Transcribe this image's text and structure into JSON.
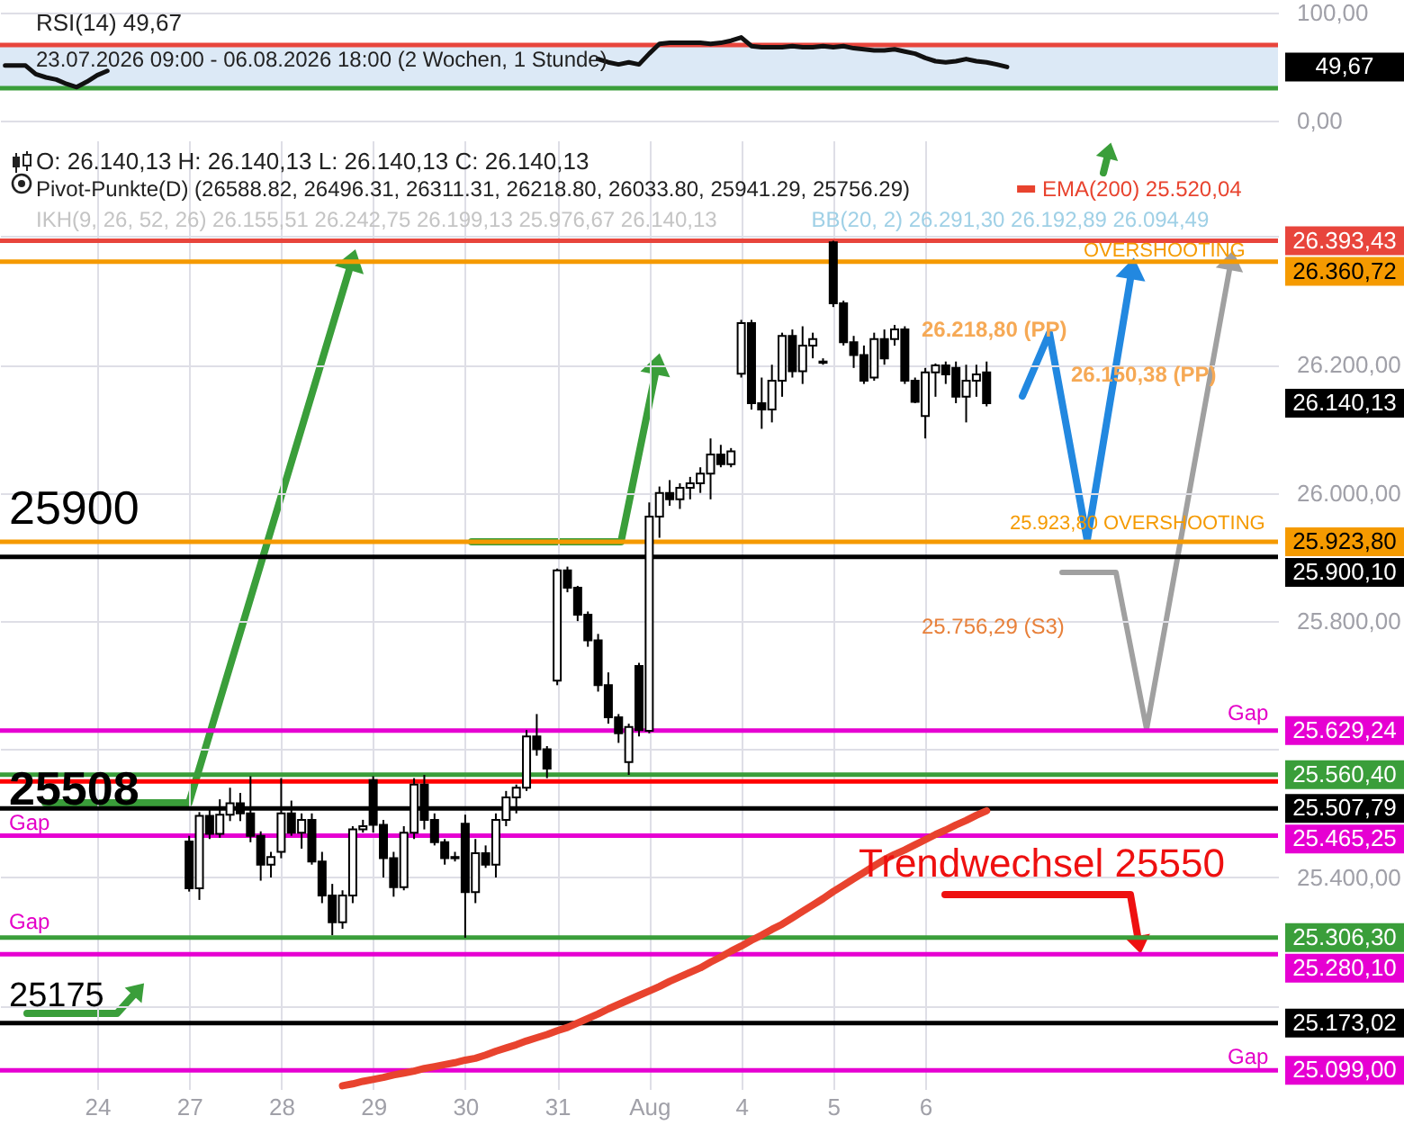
{
  "chart_data": [
    {
      "type": "line",
      "title": "RSI(14) 49,67",
      "subtitle": "23.07.2026 09:00 - 06.08.2026 18:00  (2 Wochen, 1 Stunde)",
      "color": "#111111",
      "categories": [
        null,
        null,
        null,
        null,
        null,
        null,
        null,
        null,
        null,
        null,
        null,
        null,
        null,
        null,
        null,
        null,
        null,
        null,
        null,
        null,
        null,
        null,
        null,
        null,
        null,
        null,
        null,
        null,
        null,
        null,
        null,
        null,
        null,
        null,
        null,
        null,
        null,
        null,
        null,
        null,
        null,
        null,
        null,
        null,
        null,
        null,
        null,
        null,
        null,
        null,
        null,
        null,
        null,
        null,
        null,
        null,
        null,
        null,
        null,
        null,
        null,
        null,
        null,
        null,
        null,
        null,
        null,
        null,
        null,
        null,
        null,
        null,
        null,
        null,
        null,
        null,
        null,
        null,
        null,
        null,
        null,
        null,
        null,
        null,
        null,
        null,
        null,
        null,
        null,
        null,
        null,
        null,
        null,
        null,
        null,
        null,
        null,
        null,
        null,
        null,
        null,
        null,
        null,
        null,
        null,
        null,
        null,
        null,
        null,
        null,
        null,
        null,
        null,
        null,
        null,
        null,
        null,
        null,
        null,
        null,
        null,
        null,
        null,
        null,
        null
      ],
      "values": [
        51,
        51,
        51,
        43,
        40,
        38,
        34,
        31,
        36,
        42,
        46,
        null,
        null,
        null,
        null,
        null,
        null,
        null,
        null,
        null,
        null,
        null,
        null,
        null,
        null,
        null,
        null,
        null,
        null,
        null,
        null,
        null,
        null,
        null,
        null,
        null,
        null,
        null,
        null,
        null,
        null,
        null,
        null,
        null,
        null,
        null,
        null,
        null,
        null,
        null,
        null,
        null,
        null,
        null,
        null,
        null,
        null,
        null,
        57,
        54,
        52,
        54,
        52,
        62,
        71,
        72,
        72,
        72,
        72,
        71,
        72,
        74,
        77,
        69,
        68,
        68,
        68,
        69,
        68,
        68,
        69,
        68,
        69,
        67,
        66,
        65,
        65,
        66,
        64,
        62,
        58,
        55,
        54,
        55,
        57,
        55,
        54,
        52,
        49.67,
        null,
        null,
        null,
        null,
        null,
        null,
        null,
        null,
        null,
        null,
        null,
        null,
        null,
        null,
        null,
        null,
        null,
        null,
        null,
        null,
        null,
        null,
        null,
        null,
        null,
        null
      ],
      "ylim": [
        0,
        100
      ],
      "yticks": [
        {
          "value": 0,
          "label": "0,00"
        },
        {
          "value": 100,
          "label": "100,00"
        }
      ],
      "tick_labels": "y",
      "grid": "y",
      "bands": [
        {
          "axis": "y",
          "from": 30,
          "to": 70,
          "color": "#dce9f6"
        }
      ],
      "ref_lines": [
        {
          "axis": "y",
          "value": 70,
          "color": "#e8453c"
        },
        {
          "axis": "y",
          "value": 30,
          "color": "#3a9e3a"
        }
      ],
      "annotations": [
        "49,67"
      ]
    },
    {
      "type": "candlestick",
      "title": "O: 26.140,13  H: 26.140,13  L: 26.140,13  C: 26.140,13",
      "subtitle": "Pivot-Punkte(D)  (26588.82, 26496.31, 26311.31, 26218.80, 26033.80, 25941.29, 25756.29)",
      "color": "#000000",
      "categories": [
        null,
        null,
        null,
        null,
        null,
        null,
        null,
        null,
        null,
        "24",
        null,
        null,
        null,
        null,
        null,
        null,
        null,
        null,
        "27",
        null,
        null,
        null,
        null,
        null,
        null,
        null,
        null,
        "28",
        null,
        null,
        null,
        null,
        null,
        null,
        null,
        null,
        "29",
        null,
        null,
        null,
        null,
        null,
        null,
        null,
        null,
        "30",
        null,
        null,
        null,
        null,
        null,
        null,
        null,
        null,
        "31",
        null,
        null,
        null,
        null,
        null,
        null,
        null,
        null,
        "Aug",
        null,
        null,
        null,
        null,
        null,
        null,
        null,
        null,
        "4",
        null,
        null,
        null,
        null,
        null,
        null,
        null,
        null,
        "5",
        null,
        null,
        null,
        null,
        null,
        null,
        null,
        null,
        "6",
        null,
        null,
        null,
        null,
        null,
        null,
        null,
        null,
        null,
        null,
        null,
        null,
        null,
        null,
        null,
        null,
        null,
        null,
        null,
        null,
        null,
        null,
        null,
        null,
        null,
        null,
        null,
        null,
        null,
        null,
        null,
        null,
        null,
        null
      ],
      "ohlc": [
        null,
        null,
        null,
        null,
        null,
        null,
        null,
        null,
        null,
        null,
        null,
        null,
        null,
        null,
        null,
        null,
        null,
        null,
        [
          25456,
          25465,
          25378,
          25383
        ],
        [
          25383,
          25502,
          25365,
          25496
        ],
        [
          25496,
          25510,
          25460,
          25468
        ],
        [
          25468,
          25522,
          25462,
          25498
        ],
        [
          25498,
          25540,
          25488,
          25516
        ],
        [
          25516,
          25532,
          25488,
          25500
        ],
        [
          25500,
          25558,
          25455,
          25465
        ],
        [
          25465,
          25472,
          25395,
          25420
        ],
        [
          25420,
          25440,
          25400,
          25432
        ],
        [
          25440,
          25555,
          25430,
          25500
        ],
        [
          25500,
          25520,
          25465,
          25470
        ],
        [
          25470,
          25500,
          25445,
          25490
        ],
        [
          25490,
          25500,
          25420,
          25425
        ],
        [
          25425,
          25440,
          25360,
          25372
        ],
        [
          25372,
          25390,
          25310,
          25330
        ],
        [
          25330,
          25380,
          25320,
          25372
        ],
        [
          25372,
          25480,
          25360,
          25475
        ],
        [
          25475,
          25490,
          25470,
          25480
        ],
        [
          25552,
          25558,
          25470,
          25482
        ],
        [
          25482,
          25490,
          25400,
          25430
        ],
        [
          25430,
          25440,
          25370,
          25385
        ],
        [
          25385,
          25480,
          25380,
          25470
        ],
        [
          25470,
          25555,
          25460,
          25545
        ],
        [
          25545,
          25560,
          25475,
          25490
        ],
        [
          25490,
          25500,
          25450,
          25455
        ],
        [
          25455,
          25460,
          25420,
          25430
        ],
        [
          25430,
          25440,
          25425,
          25432
        ],
        [
          25484,
          25498,
          25306,
          25377
        ],
        [
          25377,
          25460,
          25360,
          25438
        ],
        [
          25438,
          25450,
          25415,
          25420
        ],
        [
          25420,
          25500,
          25400,
          25490
        ],
        [
          25490,
          25535,
          25480,
          25525
        ],
        [
          25525,
          25545,
          25500,
          25540
        ],
        [
          25540,
          25630,
          25535,
          25620
        ],
        [
          25620,
          25655,
          25590,
          25600
        ],
        [
          25600,
          25605,
          25555,
          25570
        ],
        [
          25707,
          25882,
          25700,
          25879
        ],
        [
          25879,
          25885,
          25845,
          25852
        ],
        [
          25852,
          25855,
          25800,
          25810
        ],
        [
          25810,
          25815,
          25760,
          25770
        ],
        [
          25770,
          25780,
          25690,
          25700
        ],
        [
          25700,
          25720,
          25640,
          25650
        ],
        [
          25650,
          25655,
          25610,
          25625
        ],
        [
          25580,
          25640,
          25560,
          25635
        ],
        [
          25730,
          25735,
          25620,
          25630
        ],
        [
          25629,
          25985,
          25625,
          25963
        ],
        [
          25963,
          26010,
          25930,
          26000
        ],
        [
          26000,
          26020,
          25980,
          25990
        ],
        [
          25990,
          26015,
          25975,
          26008
        ],
        [
          26008,
          26025,
          25990,
          26015
        ],
        [
          26015,
          26040,
          26000,
          26030
        ],
        [
          26030,
          26085,
          25990,
          26060
        ],
        [
          26060,
          26075,
          26040,
          26045
        ],
        [
          26045,
          26070,
          26040,
          26065
        ],
        [
          26186,
          26270,
          26180,
          26265
        ],
        [
          26265,
          26270,
          26130,
          26140
        ],
        [
          26140,
          26180,
          26100,
          26130
        ],
        [
          26130,
          26200,
          26110,
          26175
        ],
        [
          26175,
          26250,
          26150,
          26245
        ],
        [
          26245,
          26255,
          26180,
          26190
        ],
        [
          26190,
          26260,
          26170,
          26230
        ],
        [
          26230,
          26250,
          26210,
          26240
        ],
        [
          26205,
          26210,
          26200,
          26203
        ],
        [
          26391,
          26393.43,
          26290,
          26296
        ],
        [
          26296,
          26300,
          26230,
          26235
        ],
        [
          26235,
          26245,
          26195,
          26215
        ],
        [
          26215,
          26230,
          26170,
          26175
        ],
        [
          26180,
          26250,
          26175,
          26240
        ],
        [
          26240,
          26255,
          26200,
          26210
        ],
        [
          26240,
          26262,
          26230,
          26255
        ],
        [
          26255,
          26260,
          26170,
          26175
        ],
        [
          26175,
          26180,
          26140,
          26142
        ],
        [
          26120,
          26195,
          26085,
          26188
        ],
        [
          26188,
          26202,
          26150,
          26199
        ],
        [
          26199,
          26205,
          26170,
          26185
        ],
        [
          26195,
          26205,
          26140,
          26150
        ],
        [
          26150,
          26200,
          26110,
          26175
        ],
        [
          26175,
          26200,
          26150,
          26185
        ],
        [
          26188,
          26205,
          26135,
          26140.13
        ],
        null,
        null,
        null,
        null,
        null,
        null,
        null,
        null,
        null,
        null,
        null,
        null,
        null,
        null,
        null,
        null,
        null,
        null,
        null,
        null,
        null,
        null,
        null,
        null,
        null,
        null,
        null,
        null
      ],
      "series": [
        {
          "name": "EMA(200) 25.520,04",
          "type": "line",
          "color": "#e8432e",
          "values": [
            null,
            null,
            null,
            null,
            null,
            null,
            null,
            null,
            null,
            null,
            null,
            null,
            null,
            null,
            null,
            null,
            null,
            null,
            null,
            null,
            null,
            null,
            null,
            null,
            null,
            null,
            null,
            null,
            null,
            null,
            null,
            null,
            null,
            25075,
            25078,
            25082,
            25085,
            25088,
            25092,
            25095,
            25098,
            25102,
            25105,
            25108,
            25111,
            25115,
            25118,
            25123,
            25129,
            25134,
            25139,
            25145,
            25150,
            25155,
            25161,
            25166,
            25173,
            25180,
            25187,
            25195,
            25202,
            25209,
            25216,
            25223,
            25230,
            25238,
            25245,
            25252,
            25259,
            25268,
            25276,
            25285,
            25293,
            25302,
            25310,
            25319,
            25327,
            25337,
            25347,
            25357,
            25367,
            25378,
            25388,
            25398,
            25408,
            25418,
            25428,
            25436,
            25443,
            25451,
            25459,
            25467,
            25474,
            25482,
            25489,
            25497,
            25504,
            null,
            null,
            null,
            null,
            null,
            null,
            null,
            null,
            null,
            null,
            null,
            null,
            null,
            null,
            null,
            null,
            null,
            null,
            null,
            null,
            null,
            null,
            null,
            null,
            null,
            null,
            null,
            null
          ]
        }
      ],
      "legend": "top right",
      "ylim": [
        25070,
        26550
      ],
      "yticks": [
        {
          "value": 25200,
          "label": null
        },
        {
          "value": 25400,
          "label": "25.400,00"
        },
        {
          "value": 25600,
          "label": null
        },
        {
          "value": 25800,
          "label": "25.800,00"
        },
        {
          "value": 26000,
          "label": "26.000,00"
        },
        {
          "value": 26200,
          "label": "26.200,00"
        },
        {
          "value": 26400,
          "label": null
        }
      ],
      "grid": true,
      "ref_lines": [
        {
          "axis": "y",
          "value": 26393.43,
          "label": "26.393,43",
          "color": "#e8453c"
        },
        {
          "axis": "y",
          "value": 26360.72,
          "label": "26.360,72",
          "color": "#f59a00"
        },
        {
          "axis": "y",
          "value": 25923.8,
          "label": "25.923,80",
          "color": "#f59a00"
        },
        {
          "axis": "y",
          "value": 25900.1,
          "label": "25.900,10",
          "color": "#000000"
        },
        {
          "axis": "y",
          "value": 25629.24,
          "label": "25.629,24",
          "color": "#e600d2"
        },
        {
          "axis": "y",
          "value": 25560.4,
          "label": "25.560,40",
          "color": "#3a9e3a"
        },
        {
          "axis": "y",
          "value": 25550,
          "color": "#ff0000"
        },
        {
          "axis": "y",
          "value": 25507.79,
          "label": "25.507,79",
          "color": "#000000"
        },
        {
          "axis": "y",
          "value": 25465.25,
          "label": "25.465,25",
          "color": "#e600d2"
        },
        {
          "axis": "y",
          "value": 25306.3,
          "label": "25.306,30",
          "color": "#3a9e3a"
        },
        {
          "axis": "y",
          "value": 25280.1,
          "label": "25.280,10",
          "color": "#e600d2"
        },
        {
          "axis": "y",
          "value": 25173.02,
          "label": "25.173,02",
          "color": "#000000"
        },
        {
          "axis": "y",
          "value": 25099,
          "label": "25.099,00",
          "color": "#e600d2"
        }
      ],
      "annotations": [
        "25900",
        "25508",
        "25175",
        "Gap",
        "Gap",
        "Gap",
        "Gap",
        "26.218,80 (PP)",
        "26.150,38 (PP)",
        "25.756,29 (S3)",
        "OVERSHOOTING",
        "25.923,80 OVERSHOOTING",
        "Trendwechsel 25550",
        "26.140,13",
        "IKH(9, 26, 52, 26) 26.155,51 26.242,75 26.199,13 25.976,67 26.140,13",
        "BB(20, 2) 26.291,30 26.192,89 26.094,49"
      ]
    }
  ]
}
